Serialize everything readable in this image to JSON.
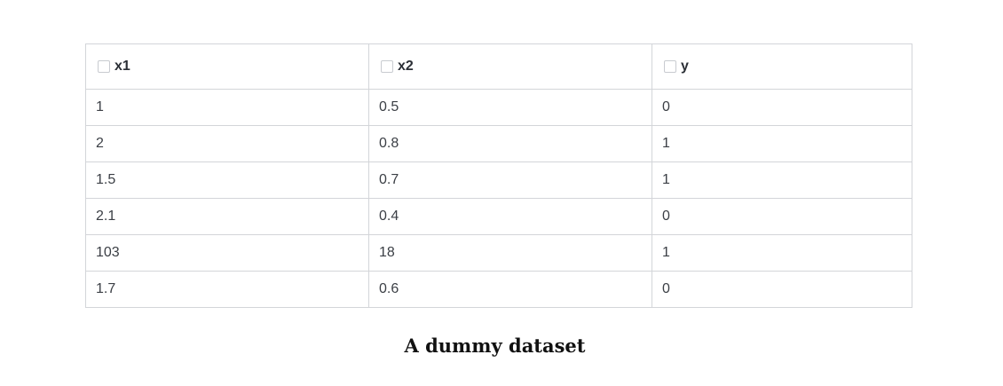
{
  "table": {
    "columns": [
      {
        "label": "x1"
      },
      {
        "label": "x2"
      },
      {
        "label": "y"
      }
    ],
    "rows": [
      [
        "1",
        "0.5",
        "0"
      ],
      [
        "2",
        "0.8",
        "1"
      ],
      [
        "1.5",
        "0.7",
        "1"
      ],
      [
        "2.1",
        "0.4",
        "0"
      ],
      [
        "103",
        "18",
        "1"
      ],
      [
        "1.7",
        "0.6",
        "0"
      ]
    ]
  },
  "caption": "A dummy dataset"
}
